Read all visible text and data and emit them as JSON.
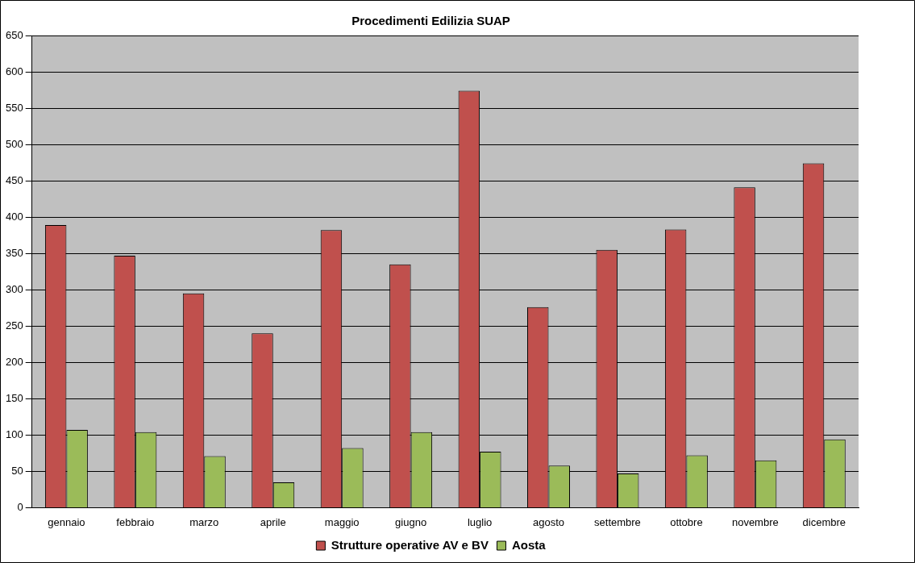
{
  "chart_data": {
    "type": "bar",
    "title": "Procedimenti Edilizia SUAP",
    "categories": [
      "gennaio",
      "febbraio",
      "marzo",
      "aprile",
      "maggio",
      "giugno",
      "luglio",
      "agosto",
      "settembre",
      "ottobre",
      "novembre",
      "dicembre"
    ],
    "series": [
      {
        "name": "Strutture operative AV e BV",
        "color": "#c0504d",
        "values": [
          389,
          347,
          295,
          240,
          382,
          335,
          574,
          276,
          355,
          383,
          441,
          474
        ]
      },
      {
        "name": "Aosta",
        "color": "#9bbb59",
        "values": [
          107,
          104,
          71,
          35,
          82,
          104,
          77,
          58,
          47,
          72,
          65,
          94
        ]
      }
    ],
    "ylim": [
      0,
      650
    ],
    "yticks": [
      0,
      50,
      100,
      150,
      200,
      250,
      300,
      350,
      400,
      450,
      500,
      550,
      600,
      650
    ],
    "grid": "y",
    "legend": "bottom"
  }
}
